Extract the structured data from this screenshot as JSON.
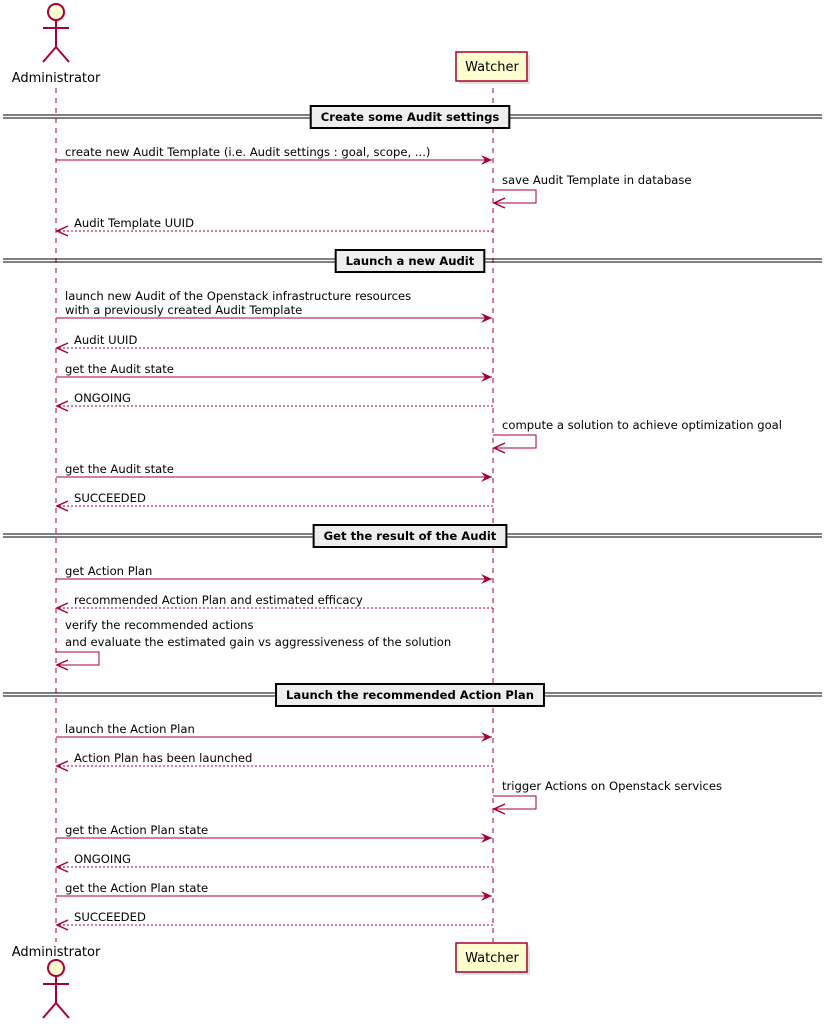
{
  "colors": {
    "line": "#A80036",
    "participant_fill": "#FEFECE",
    "divider_fill": "#EEEEEE"
  },
  "participants": [
    {
      "id": "A",
      "name": "Administrator",
      "kind": "actor"
    },
    {
      "id": "W",
      "name": "Watcher",
      "kind": "participant"
    }
  ],
  "events": [
    {
      "type": "divider",
      "text": "Create some Audit settings"
    },
    {
      "type": "message",
      "from": "A",
      "to": "W",
      "lines": [
        "create new Audit Template (i.e. Audit settings : goal, scope, ...)"
      ]
    },
    {
      "type": "self",
      "on": "W",
      "lines": [
        "save Audit Template in database"
      ]
    },
    {
      "type": "return",
      "from": "W",
      "to": "A",
      "lines": [
        "Audit Template UUID"
      ]
    },
    {
      "type": "divider",
      "text": "Launch a new Audit"
    },
    {
      "type": "message",
      "from": "A",
      "to": "W",
      "lines": [
        "launch new Audit of the Openstack infrastructure resources",
        "with a previously created Audit Template"
      ]
    },
    {
      "type": "return",
      "from": "W",
      "to": "A",
      "lines": [
        "Audit UUID"
      ]
    },
    {
      "type": "message",
      "from": "A",
      "to": "W",
      "lines": [
        "get the Audit state"
      ]
    },
    {
      "type": "return",
      "from": "W",
      "to": "A",
      "lines": [
        "ONGOING"
      ]
    },
    {
      "type": "self",
      "on": "W",
      "lines": [
        "compute a solution to achieve optimization goal"
      ]
    },
    {
      "type": "message",
      "from": "A",
      "to": "W",
      "lines": [
        "get the Audit state"
      ]
    },
    {
      "type": "return",
      "from": "W",
      "to": "A",
      "lines": [
        "SUCCEEDED"
      ]
    },
    {
      "type": "divider",
      "text": "Get the result of the Audit"
    },
    {
      "type": "message",
      "from": "A",
      "to": "W",
      "lines": [
        "get Action Plan"
      ]
    },
    {
      "type": "return",
      "from": "W",
      "to": "A",
      "lines": [
        "recommended Action Plan and estimated efficacy"
      ]
    },
    {
      "type": "self",
      "on": "A",
      "lines": [
        "verify the recommended actions",
        "and evaluate the estimated gain vs aggressiveness of the solution"
      ]
    },
    {
      "type": "divider",
      "text": "Launch the recommended Action Plan"
    },
    {
      "type": "message",
      "from": "A",
      "to": "W",
      "lines": [
        "launch the Action Plan"
      ]
    },
    {
      "type": "return",
      "from": "W",
      "to": "A",
      "lines": [
        "Action Plan has been launched"
      ]
    },
    {
      "type": "self",
      "on": "W",
      "lines": [
        "trigger Actions on Openstack services"
      ]
    },
    {
      "type": "message",
      "from": "A",
      "to": "W",
      "lines": [
        "get the Action Plan state"
      ]
    },
    {
      "type": "return",
      "from": "W",
      "to": "A",
      "lines": [
        "ONGOING"
      ]
    },
    {
      "type": "message",
      "from": "A",
      "to": "W",
      "lines": [
        "get the Action Plan state"
      ]
    },
    {
      "type": "return",
      "from": "W",
      "to": "A",
      "lines": [
        "SUCCEEDED"
      ]
    }
  ]
}
